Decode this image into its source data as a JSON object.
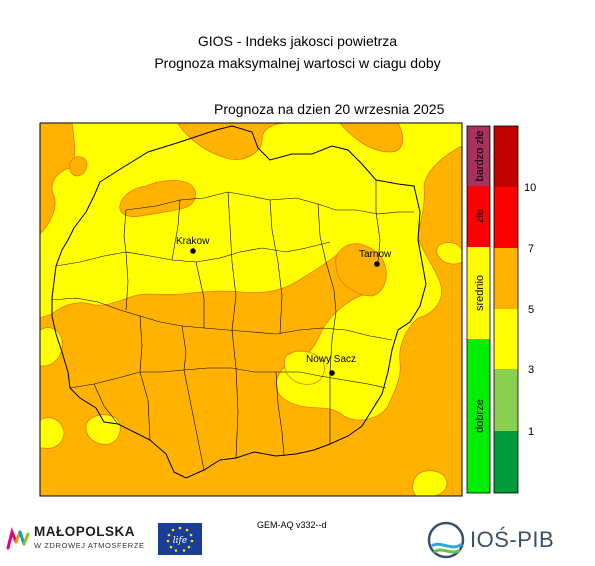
{
  "header": {
    "title_line1": "GIOS - Indeks jakosci powietrza",
    "title_line2": "Prognoza maksymalnej wartosci w ciagu doby",
    "forecast_date": "Prognoza na dzien  20 wrzesnia 2025"
  },
  "map": {
    "cities": [
      {
        "name": "Krakow"
      },
      {
        "name": "Tarnow"
      },
      {
        "name": "Nowy Sacz"
      }
    ]
  },
  "legend": {
    "categories": [
      {
        "label": "dobrze",
        "color": "#00ee00"
      },
      {
        "label": "srednio",
        "color": "#ffff00"
      },
      {
        "label": "złe",
        "color": "#ff0000"
      },
      {
        "label": "bardzo złe",
        "color": "#a8325e"
      }
    ],
    "scale_colors": [
      "#009c3c",
      "#8acf4f",
      "#ffff00",
      "#ffb300",
      "#ff0000",
      "#c10000"
    ],
    "scale_ticks": [
      "1",
      "3",
      "5",
      "7",
      "10"
    ]
  },
  "footer": {
    "model": "GEM-AQ v332--d",
    "malopolska_name": "MAŁOPOLSKA",
    "malopolska_sub": "W ZDROWEJ ATMOSFERZE",
    "life_text": "life",
    "ios_name": "IOŚ-PIB"
  }
}
